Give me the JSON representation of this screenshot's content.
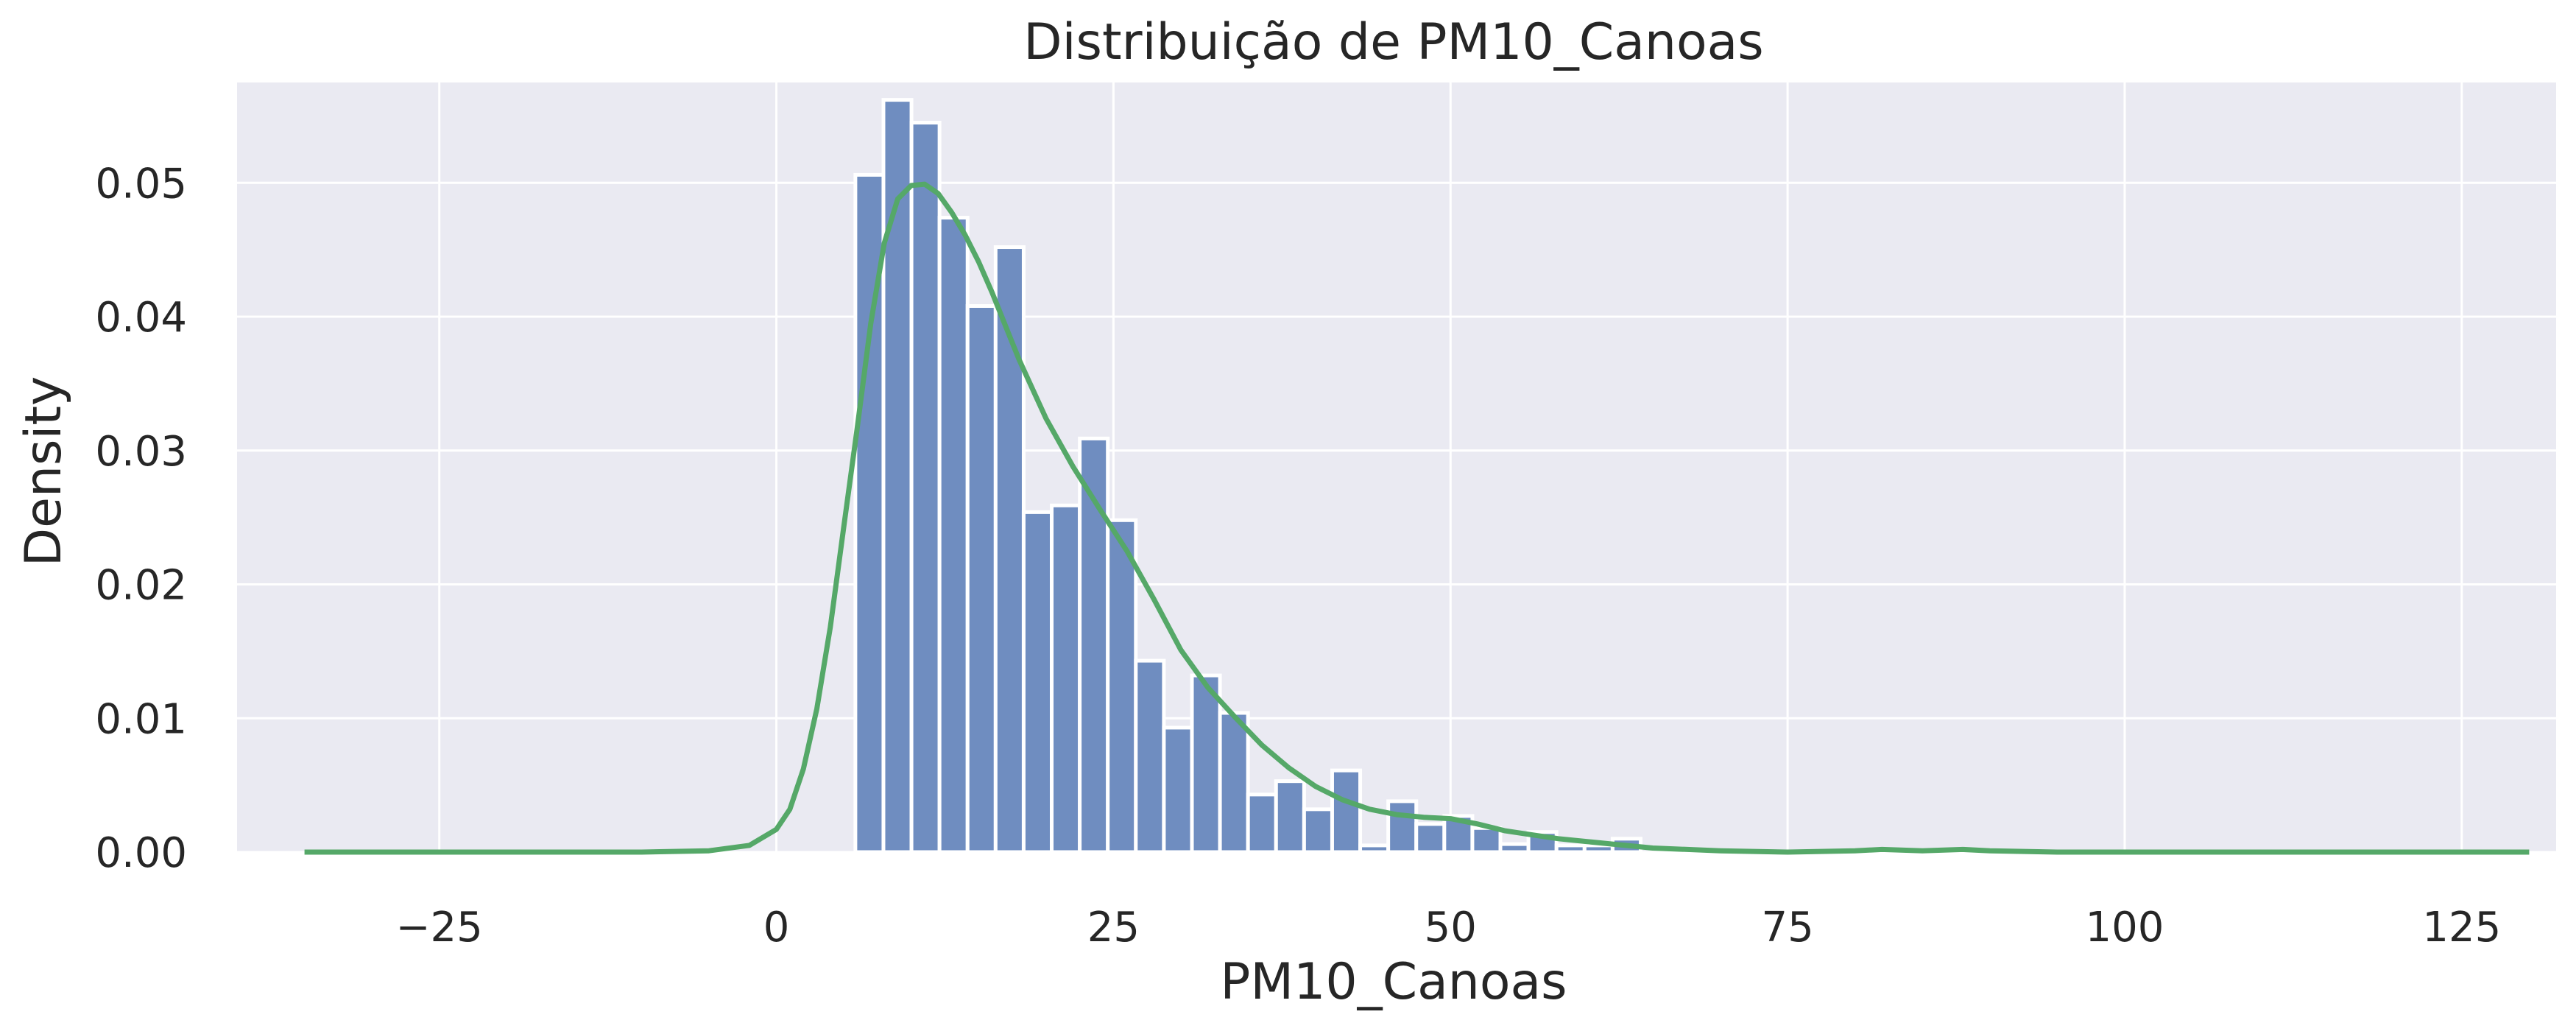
{
  "chart_data": {
    "type": "bar",
    "title": "Distribuição de PM10_Canoas",
    "xlabel": "PM10_Canoas",
    "ylabel": "Density",
    "xlim": [
      -40,
      132
    ],
    "ylim": [
      0,
      0.0575
    ],
    "grid": true,
    "legend": "none",
    "x_ticks": [
      -25,
      0,
      25,
      50,
      75,
      100,
      125
    ],
    "x_tick_labels": [
      "−25",
      "0",
      "25",
      "50",
      "75",
      "100",
      "125"
    ],
    "y_ticks": [
      0.0,
      0.01,
      0.02,
      0.03,
      0.04,
      0.05
    ],
    "y_tick_labels": [
      "0.00",
      "0.01",
      "0.02",
      "0.03",
      "0.04",
      "0.05"
    ],
    "colors": {
      "plot_background": "#eaeaf2",
      "bar_fill": "#6f8dc0",
      "bar_edge": "#ffffff",
      "kde_line": "#55a868",
      "grid": "#ffffff"
    },
    "histogram": {
      "bin_start": 5.86,
      "bin_width": 2.08,
      "densities": [
        0.0506,
        0.0562,
        0.0545,
        0.0474,
        0.0408,
        0.0452,
        0.0254,
        0.0259,
        0.0309,
        0.0248,
        0.0143,
        0.0093,
        0.0132,
        0.0104,
        0.0043,
        0.0053,
        0.0032,
        0.0061,
        0.0005,
        0.0038,
        0.0021,
        0.0027,
        0.0018,
        0.0006,
        0.0015,
        0.0005,
        0.0005,
        0.001
      ]
    },
    "kde": {
      "x": [
        -35,
        -10,
        -5,
        -2,
        0,
        1,
        2,
        3,
        4,
        5,
        6,
        7,
        8,
        9,
        10,
        11,
        12,
        13,
        14,
        15,
        16,
        17,
        18,
        20,
        22,
        24,
        26,
        28,
        30,
        32,
        34,
        36,
        38,
        40,
        42,
        44,
        46,
        48,
        50,
        52,
        54,
        56,
        58,
        60,
        62,
        65,
        70,
        75,
        80,
        82,
        85,
        88,
        90,
        95,
        100,
        110,
        120,
        130
      ],
      "y": [
        0.0,
        0.0,
        0.0001,
        0.0005,
        0.0017,
        0.0032,
        0.0062,
        0.0107,
        0.0168,
        0.0243,
        0.0317,
        0.0395,
        0.0455,
        0.0488,
        0.0498,
        0.0499,
        0.0492,
        0.0478,
        0.0461,
        0.0441,
        0.0418,
        0.0393,
        0.0368,
        0.0324,
        0.0288,
        0.0256,
        0.0225,
        0.0189,
        0.0151,
        0.0123,
        0.0101,
        0.008,
        0.0063,
        0.0049,
        0.0039,
        0.0032,
        0.0028,
        0.0026,
        0.0025,
        0.0021,
        0.0016,
        0.0013,
        0.001,
        0.0008,
        0.0006,
        0.0003,
        0.0001,
        0.0,
        0.0001,
        0.0002,
        0.0001,
        0.0002,
        0.0001,
        0.0,
        0.0,
        0.0,
        0.0,
        0.0
      ]
    }
  }
}
